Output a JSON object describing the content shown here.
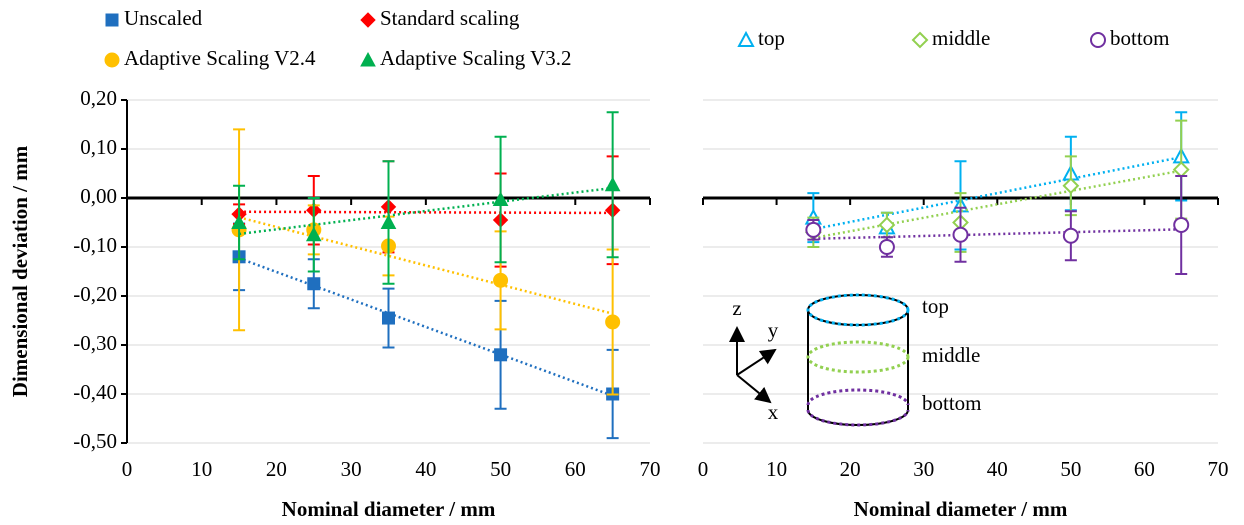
{
  "chart_data": [
    {
      "type": "scatter",
      "trendline": true,
      "grid": true,
      "ytick_labels": true,
      "ylabel": "Dimensional deviation / mm",
      "xlabel": "Nominal diameter / mm",
      "x": [
        15,
        25,
        35,
        50,
        65
      ],
      "xlim": [
        0,
        70
      ],
      "xticks": [
        0,
        10,
        20,
        30,
        40,
        50,
        60,
        70
      ],
      "ylim": [
        -0.5,
        0.2
      ],
      "yticks": [
        {
          "value": -0.5,
          "label": "-0,50"
        },
        {
          "value": -0.4,
          "label": "-0,40"
        },
        {
          "value": -0.3,
          "label": "-0,30"
        },
        {
          "value": -0.2,
          "label": "-0,20"
        },
        {
          "value": -0.1,
          "label": "-0,10"
        },
        {
          "value": 0,
          "label": "0,00"
        },
        {
          "value": 0.1,
          "label": "0,10"
        },
        {
          "value": 0.2,
          "label": "0,20"
        }
      ],
      "series": [
        {
          "name": "Unscaled",
          "color": "#1f6fbf",
          "marker": "square",
          "filled": true,
          "values": [
            -0.12,
            -0.175,
            -0.245,
            -0.32,
            -0.4
          ],
          "errors": [
            0.068,
            0.05,
            0.06,
            0.11,
            0.09
          ]
        },
        {
          "name": "Standard scaling",
          "color": "#ff0000",
          "marker": "diamond",
          "filled": true,
          "values": [
            -0.033,
            -0.025,
            -0.018,
            -0.045,
            -0.025
          ],
          "errors": [
            0.02,
            0.07,
            0.093,
            0.095,
            0.11
          ]
        },
        {
          "name": "Adaptive Scaling V2.4",
          "color": "#ffc000",
          "marker": "circle",
          "filled": true,
          "values": [
            -0.065,
            -0.065,
            -0.098,
            -0.168,
            -0.253
          ],
          "errors": [
            0.205,
            0.05,
            0.06,
            0.1,
            0.148
          ]
        },
        {
          "name": "Adaptive Scaling V3.2",
          "color": "#00b050",
          "marker": "triangle",
          "filled": true,
          "values": [
            -0.05,
            -0.075,
            -0.05,
            -0.003,
            0.027
          ],
          "errors": [
            0.075,
            0.075,
            0.125,
            0.128,
            0.148
          ]
        }
      ]
    },
    {
      "type": "scatter",
      "trendline": true,
      "grid": true,
      "ytick_labels": false,
      "xlabel": "Nominal diameter / mm",
      "x": [
        15,
        25,
        35,
        50,
        65
      ],
      "xlim": [
        0,
        70
      ],
      "xticks": [
        0,
        10,
        20,
        30,
        40,
        50,
        60,
        70
      ],
      "ylim": [
        -0.5,
        0.2
      ],
      "yticks": [
        -0.5,
        -0.4,
        -0.3,
        -0.2,
        -0.1,
        0,
        0.1,
        0.2
      ],
      "series": [
        {
          "name": "top",
          "color": "#00b0f0",
          "marker": "triangle",
          "filled": false,
          "values": [
            -0.04,
            -0.06,
            -0.015,
            0.05,
            0.085
          ],
          "errors": [
            0.05,
            0.03,
            0.09,
            0.075,
            0.09
          ]
        },
        {
          "name": "middle",
          "color": "#92d050",
          "marker": "diamond",
          "filled": false,
          "values": [
            -0.07,
            -0.055,
            -0.05,
            0.025,
            0.058
          ],
          "errors": [
            0.03,
            0.025,
            0.06,
            0.06,
            0.1
          ]
        },
        {
          "name": "bottom",
          "color": "#7030a0",
          "marker": "circle",
          "filled": false,
          "values": [
            -0.065,
            -0.1,
            -0.075,
            -0.077,
            -0.055
          ],
          "errors": [
            0.02,
            0.02,
            0.055,
            0.05,
            0.1
          ]
        }
      ],
      "inset": {
        "axes": [
          "z",
          "y",
          "x"
        ],
        "labels": [
          "top",
          "middle",
          "bottom"
        ]
      }
    }
  ]
}
